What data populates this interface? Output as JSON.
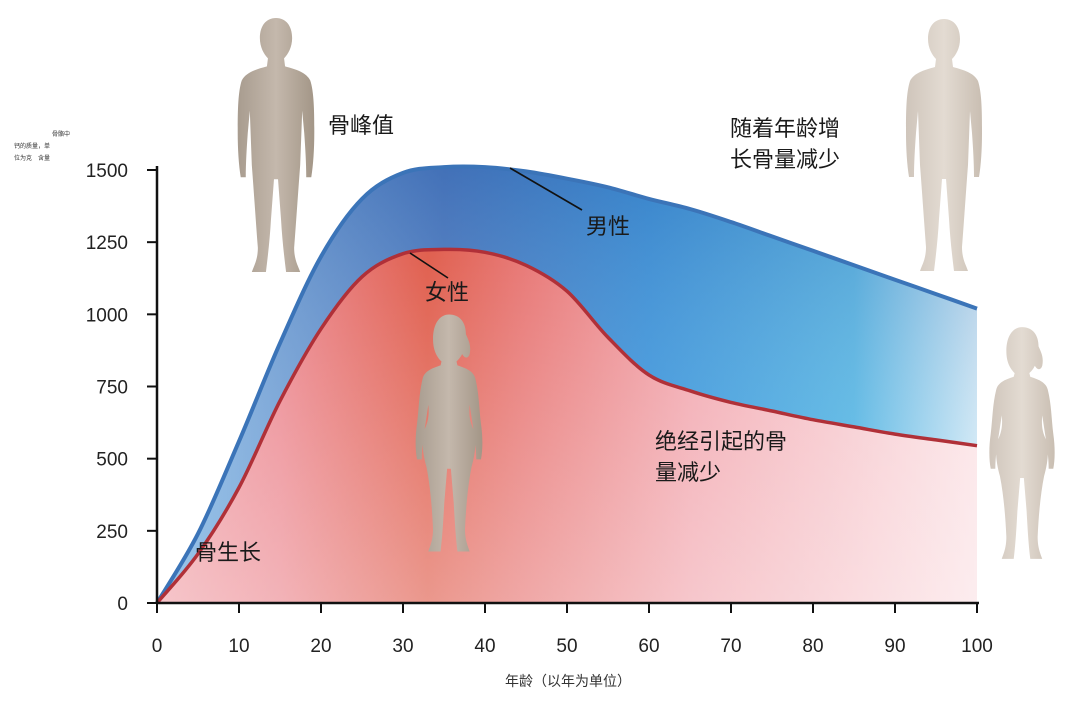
{
  "chart_data": {
    "type": "area",
    "ylabel_lines": [
      "骨骼中",
      "钙的质量，单",
      "位为克",
      "含量"
    ],
    "xlabel": "年龄（以年为单位）",
    "xlim": [
      0,
      100
    ],
    "ylim": [
      0,
      1500
    ],
    "x_ticks": [
      0,
      10,
      20,
      30,
      40,
      50,
      60,
      70,
      80,
      90,
      100
    ],
    "y_ticks": [
      0,
      250,
      500,
      750,
      1000,
      1250,
      1500
    ],
    "series": [
      {
        "name": "男性",
        "color": "#3b74b8",
        "x": [
          0,
          5,
          10,
          15,
          20,
          25,
          30,
          35,
          40,
          45,
          50,
          55,
          60,
          65,
          70,
          75,
          80,
          85,
          90,
          95,
          100
        ],
        "y": [
          0,
          240,
          560,
          900,
          1200,
          1400,
          1490,
          1510,
          1510,
          1495,
          1470,
          1440,
          1400,
          1365,
          1320,
          1270,
          1220,
          1170,
          1120,
          1070,
          1020
        ]
      },
      {
        "name": "女性",
        "color": "#b03038",
        "x": [
          0,
          5,
          10,
          15,
          20,
          25,
          30,
          35,
          40,
          45,
          50,
          55,
          60,
          65,
          70,
          75,
          80,
          85,
          90,
          95,
          100
        ],
        "y": [
          0,
          170,
          400,
          700,
          950,
          1130,
          1210,
          1225,
          1215,
          1170,
          1080,
          920,
          790,
          735,
          695,
          665,
          635,
          610,
          585,
          565,
          545
        ]
      }
    ],
    "annotations": {
      "peak": "骨峰值",
      "aging": [
        "随着年龄增",
        "长骨量减少"
      ],
      "male": "男性",
      "female": "女性",
      "menopause": [
        "绝经引起的骨",
        "量减少"
      ],
      "growth": "骨生长"
    }
  }
}
